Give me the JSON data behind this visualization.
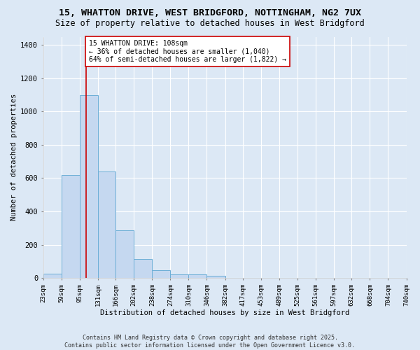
{
  "title_line1": "15, WHATTON DRIVE, WEST BRIDGFORD, NOTTINGHAM, NG2 7UX",
  "title_line2": "Size of property relative to detached houses in West Bridgford",
  "xlabel": "Distribution of detached houses by size in West Bridgford",
  "ylabel": "Number of detached properties",
  "bin_edges": [
    23,
    59,
    95,
    131,
    166,
    202,
    238,
    274,
    310,
    346,
    382,
    417,
    453,
    489,
    525,
    561,
    597,
    632,
    668,
    704,
    740
  ],
  "bar_heights": [
    25,
    620,
    1100,
    640,
    285,
    115,
    48,
    20,
    20,
    12,
    0,
    0,
    0,
    0,
    0,
    0,
    0,
    0,
    0,
    0
  ],
  "bar_color": "#c5d8f0",
  "bar_edge_color": "#6baed6",
  "property_size": 108,
  "red_line_color": "#cc0000",
  "annotation_text": "15 WHATTON DRIVE: 108sqm\n← 36% of detached houses are smaller (1,040)\n64% of semi-detached houses are larger (1,822) →",
  "annotation_box_color": "#ffffff",
  "annotation_border_color": "#cc0000",
  "ylim": [
    0,
    1450
  ],
  "background_color": "#dce8f5",
  "grid_color": "#ffffff",
  "footer_line1": "Contains HM Land Registry data © Crown copyright and database right 2025.",
  "footer_line2": "Contains public sector information licensed under the Open Government Licence v3.0.",
  "title_fontsize": 9.5,
  "subtitle_fontsize": 8.5,
  "axis_label_fontsize": 7.5,
  "tick_fontsize": 6.5,
  "annotation_fontsize": 7,
  "footer_fontsize": 6
}
